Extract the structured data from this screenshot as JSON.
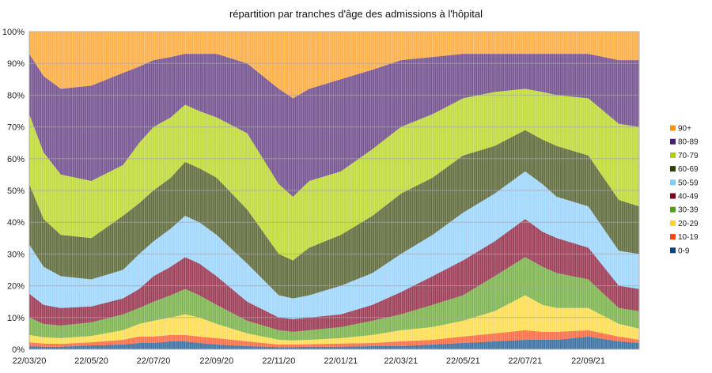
{
  "chart_data": {
    "type": "area",
    "stacked": true,
    "percent": true,
    "title": "répartition par tranches d'âge des admissions à l'hôpital",
    "xlabel": "",
    "ylabel": "",
    "xlim": [
      0,
      599
    ],
    "ylim": [
      0,
      100
    ],
    "grid": true,
    "legend_position": "right",
    "x_day_offset": [
      0,
      14,
      31,
      61,
      92,
      108,
      122,
      139,
      153,
      167,
      184,
      214,
      245,
      259,
      275,
      306,
      337,
      365,
      396,
      426,
      457,
      487,
      504,
      518,
      549,
      579,
      599
    ],
    "xticks": [
      {
        "day": 0,
        "label": "22/03/20"
      },
      {
        "day": 61,
        "label": "22/05/20"
      },
      {
        "day": 122,
        "label": "22/07/20"
      },
      {
        "day": 184,
        "label": "22/09/20"
      },
      {
        "day": 245,
        "label": "22/11/20"
      },
      {
        "day": 306,
        "label": "22/01/21"
      },
      {
        "day": 365,
        "label": "22/03/21"
      },
      {
        "day": 426,
        "label": "22/05/21"
      },
      {
        "day": 487,
        "label": "22/07/21"
      },
      {
        "day": 549,
        "label": "22/09/21"
      }
    ],
    "yticks": [
      {
        "value": 0,
        "label": "0%"
      },
      {
        "value": 10,
        "label": "10%"
      },
      {
        "value": 20,
        "label": "20%"
      },
      {
        "value": 30,
        "label": "30%"
      },
      {
        "value": 40,
        "label": "40%"
      },
      {
        "value": 50,
        "label": "50%"
      },
      {
        "value": 60,
        "label": "60%"
      },
      {
        "value": 70,
        "label": "70%"
      },
      {
        "value": 80,
        "label": "80%"
      },
      {
        "value": 90,
        "label": "90%"
      },
      {
        "value": 100,
        "label": "100%"
      }
    ],
    "series": [
      {
        "name": "90+",
        "color": "#ff950e",
        "values": [
          7,
          14,
          18,
          17,
          13,
          11,
          9,
          8,
          7,
          7,
          7,
          10,
          18,
          21,
          18,
          15,
          12,
          9,
          8,
          7,
          7,
          7,
          7,
          7,
          7,
          9,
          9
        ]
      },
      {
        "name": "80-89",
        "color": "#4b1f6f",
        "values": [
          19,
          24,
          27,
          30,
          29,
          24,
          21,
          19,
          16,
          18,
          20,
          22,
          30,
          31,
          29,
          29,
          25,
          21,
          18,
          14,
          12,
          11,
          12,
          13,
          14,
          20,
          21
        ]
      },
      {
        "name": "70-79",
        "color": "#aecf00",
        "values": [
          22,
          21,
          19,
          18,
          16,
          19,
          20,
          19,
          18,
          18,
          19,
          24,
          22,
          20,
          21,
          20,
          21,
          21,
          20,
          18,
          17,
          13,
          15,
          16,
          18,
          24,
          25
        ]
      },
      {
        "name": "60-69",
        "color": "#314004",
        "values": [
          19,
          15,
          13,
          13,
          17,
          16,
          16,
          16,
          17,
          17,
          18,
          17,
          13,
          12,
          15,
          16,
          18,
          19,
          18,
          18,
          15,
          13,
          14,
          16,
          16,
          16,
          15
        ]
      },
      {
        "name": "50-59",
        "color": "#83caff",
        "values": [
          15.5,
          12,
          10,
          8.5,
          9,
          11,
          11,
          12,
          13,
          13,
          13,
          12,
          7,
          6.5,
          7,
          9,
          10,
          12,
          13,
          15,
          15,
          15,
          15,
          13,
          13,
          11,
          11
        ]
      },
      {
        "name": "40-49",
        "color": "#7e0021",
        "values": [
          7.5,
          6,
          5.5,
          5,
          5,
          6,
          8,
          9,
          10,
          10,
          9,
          6,
          4,
          4,
          4,
          4,
          5,
          7,
          9,
          11,
          11,
          12,
          11,
          11,
          10,
          7,
          7
        ]
      },
      {
        "name": "30-39",
        "color": "#579d1c",
        "values": [
          5.5,
          4.2,
          4,
          4.3,
          5,
          5,
          6,
          7,
          8,
          7,
          6,
          4,
          3,
          2.7,
          3,
          3.5,
          4.5,
          5,
          7,
          8,
          11,
          12,
          12,
          11,
          9,
          5,
          5.5
        ]
      },
      {
        "name": "20-29",
        "color": "#ffd320",
        "values": [
          2.3,
          2,
          1.8,
          2,
          3,
          4,
          5,
          5.5,
          6.5,
          6,
          4.5,
          2.5,
          1.5,
          1.3,
          1.4,
          1.7,
          2.5,
          3.5,
          4,
          5,
          7,
          11,
          8.5,
          7.5,
          7,
          4,
          3.5
        ]
      },
      {
        "name": "10-19",
        "color": "#ff420e",
        "values": [
          1.2,
          1,
          0.9,
          1,
          1.5,
          2,
          2,
          2,
          2,
          2,
          2,
          1.5,
          0.8,
          0.8,
          0.8,
          1,
          1,
          1.5,
          1.5,
          2,
          2.5,
          3,
          2.5,
          2.5,
          2,
          1.5,
          1
        ]
      },
      {
        "name": "0-9",
        "color": "#004586",
        "values": [
          1,
          0.8,
          0.8,
          1.2,
          1.5,
          2,
          2,
          2.5,
          2.5,
          2,
          1.5,
          1,
          0.7,
          0.7,
          0.8,
          0.8,
          1,
          1,
          1.5,
          2,
          2.5,
          3,
          3,
          3,
          4,
          2.5,
          2
        ]
      }
    ]
  }
}
